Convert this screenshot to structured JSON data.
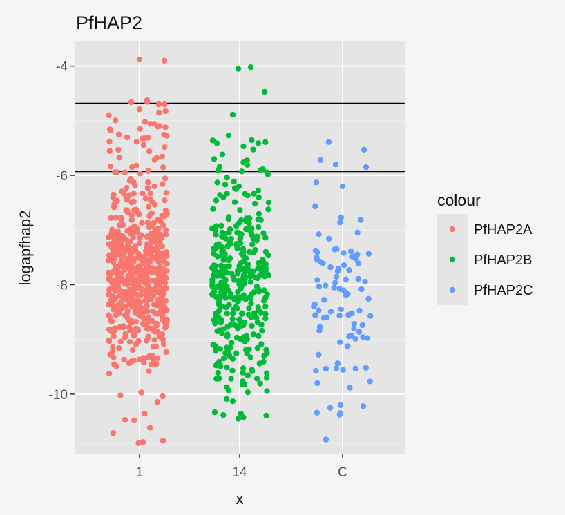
{
  "chart_data": {
    "type": "scatter",
    "title": "PfHAP2",
    "xlabel": "x",
    "ylabel": "logapfhap2",
    "categories": [
      "1",
      "14",
      "C"
    ],
    "ylim": [
      -11.1,
      -3.55
    ],
    "yticks": [
      -10,
      -8,
      -6,
      -4
    ],
    "grid": true,
    "reference_lines_y": [
      -4.68,
      -5.93
    ],
    "legend": {
      "title": "colour",
      "position": "right",
      "entries": [
        "PfHAP2A",
        "PfHAP2B",
        "PfHAP2C"
      ]
    },
    "series": [
      {
        "name": "PfHAP2A",
        "category": "1",
        "color": "#F8766D",
        "spread": [
          -0.45,
          0.4
        ],
        "density": [
          [
            -11,
            -9.5,
            12
          ],
          [
            -9.5,
            -6.3,
            560
          ],
          [
            -6.3,
            -5.0,
            45
          ],
          [
            -5.0,
            -4.6,
            8
          ]
        ],
        "points": [
          {
            "dx": 0.0,
            "y": -3.88
          },
          {
            "dx": 0.36,
            "y": -3.9
          },
          {
            "dx": -0.12,
            "y": -4.66
          },
          {
            "dx": 0.28,
            "y": -4.7
          },
          {
            "dx": 0.08,
            "y": -5.02
          },
          {
            "dx": -0.3,
            "y": -5.25
          },
          {
            "dx": -0.21,
            "y": -10.47
          },
          {
            "dx": 0.34,
            "y": -10.85
          },
          {
            "dx": 0.03,
            "y": -9.97
          }
        ]
      },
      {
        "name": "PfHAP2B",
        "category": "14",
        "color": "#00BA38",
        "spread": [
          -0.4,
          0.42
        ],
        "density": [
          [
            -10.5,
            -9.8,
            12
          ],
          [
            -9.8,
            -6.2,
            330
          ],
          [
            -6.2,
            -5.3,
            22
          ]
        ],
        "points": [
          {
            "dx": -0.02,
            "y": -4.05
          },
          {
            "dx": 0.16,
            "y": -4.02
          },
          {
            "dx": 0.36,
            "y": -4.47
          },
          {
            "dx": -0.1,
            "y": -4.89
          },
          {
            "dx": -0.16,
            "y": -5.27
          },
          {
            "dx": 0.27,
            "y": -5.41
          },
          {
            "dx": -0.39,
            "y": -5.36
          },
          {
            "dx": -0.36,
            "y": -10.33
          },
          {
            "dx": -0.02,
            "y": -10.45
          },
          {
            "dx": -0.1,
            "y": -10.13
          }
        ]
      },
      {
        "name": "PfHAP2C",
        "category": "C",
        "color": "#619CFF",
        "spread": [
          -0.42,
          0.42
        ],
        "density": [
          [
            -10.5,
            -6.5,
            85
          ]
        ],
        "points": [
          {
            "dx": -0.2,
            "y": -5.39
          },
          {
            "dx": 0.31,
            "y": -5.53
          },
          {
            "dx": 0.34,
            "y": -5.85
          },
          {
            "dx": -0.38,
            "y": -6.13
          },
          {
            "dx": -0.32,
            "y": -5.72
          },
          {
            "dx": -0.1,
            "y": -5.8
          },
          {
            "dx": 0.0,
            "y": -6.2
          },
          {
            "dx": -0.24,
            "y": -10.83
          },
          {
            "dx": -0.18,
            "y": -10.25
          },
          {
            "dx": 0.3,
            "y": -10.22
          }
        ]
      }
    ]
  }
}
